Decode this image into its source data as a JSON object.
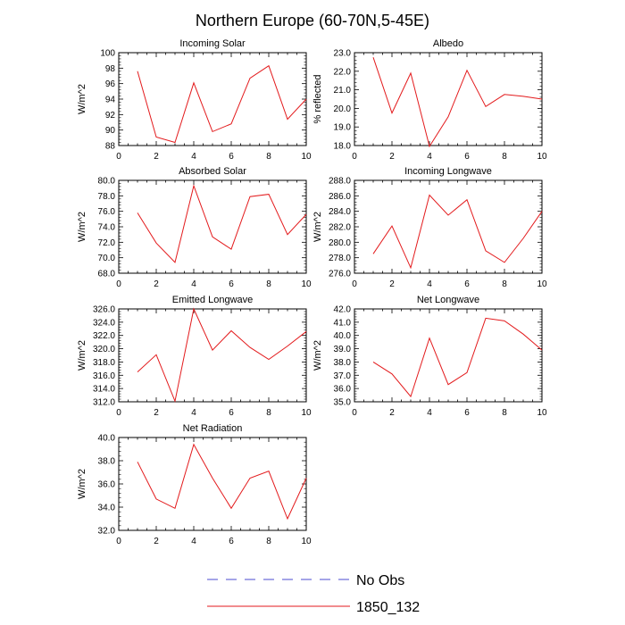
{
  "figure": {
    "title": "Northern Europe (60-70N,5-45E)",
    "legend": [
      {
        "label": "No Obs",
        "color": "#4b4bd2",
        "style": "dashed"
      },
      {
        "label": "1850_132",
        "color": "#e31a1c",
        "style": "solid"
      }
    ],
    "line_color": "#e31a1c"
  },
  "chart_data": [
    {
      "type": "line",
      "title": "Incoming Solar",
      "ylabel": "W/m^2",
      "xlim": [
        0,
        10
      ],
      "ylim": [
        88,
        100
      ],
      "xticks": [
        0,
        2,
        4,
        6,
        8,
        10
      ],
      "yticks": [
        "88",
        "90",
        "92",
        "94",
        "96",
        "98",
        "100"
      ],
      "grid": false,
      "series": [
        {
          "x": [
            1,
            2,
            3,
            4,
            5,
            6,
            7,
            8,
            9,
            10
          ],
          "y": [
            97.6,
            89.1,
            88.4,
            96.1,
            89.8,
            90.8,
            96.7,
            98.3,
            91.4,
            94.0
          ]
        }
      ]
    },
    {
      "type": "line",
      "title": "Albedo",
      "ylabel": "% reflected",
      "xlim": [
        0,
        10
      ],
      "ylim": [
        18,
        23
      ],
      "xticks": [
        0,
        2,
        4,
        6,
        8,
        10
      ],
      "yticks": [
        "18.0",
        "19.0",
        "20.0",
        "21.0",
        "22.0",
        "23.0"
      ],
      "grid": false,
      "series": [
        {
          "x": [
            1,
            2,
            3,
            4,
            5,
            6,
            7,
            8,
            9,
            10
          ],
          "y": [
            22.75,
            19.75,
            21.9,
            17.95,
            19.55,
            22.05,
            20.1,
            20.75,
            20.65,
            20.5
          ]
        }
      ]
    },
    {
      "type": "line",
      "title": "Absorbed Solar",
      "ylabel": "W/m^2",
      "xlim": [
        0,
        10
      ],
      "ylim": [
        68,
        80
      ],
      "xticks": [
        0,
        2,
        4,
        6,
        8,
        10
      ],
      "yticks": [
        "68.0",
        "70.0",
        "72.0",
        "74.0",
        "76.0",
        "78.0",
        "80.0"
      ],
      "grid": false,
      "series": [
        {
          "x": [
            1,
            2,
            3,
            4,
            5,
            6,
            7,
            8,
            9,
            10
          ],
          "y": [
            75.8,
            71.9,
            69.4,
            79.3,
            72.7,
            71.1,
            77.9,
            78.2,
            73.0,
            75.6
          ]
        }
      ]
    },
    {
      "type": "line",
      "title": "Incoming Longwave",
      "ylabel": "W/m^2",
      "xlim": [
        0,
        10
      ],
      "ylim": [
        276,
        288
      ],
      "xticks": [
        0,
        2,
        4,
        6,
        8,
        10
      ],
      "yticks": [
        "276.0",
        "278.0",
        "280.0",
        "282.0",
        "284.0",
        "286.0",
        "288.0"
      ],
      "grid": false,
      "series": [
        {
          "x": [
            1,
            2,
            3,
            4,
            5,
            6,
            7,
            8,
            9,
            10
          ],
          "y": [
            278.5,
            282.1,
            276.7,
            286.1,
            283.5,
            285.5,
            278.9,
            277.4,
            280.5,
            284.0
          ]
        }
      ]
    },
    {
      "type": "line",
      "title": "Emitted Longwave",
      "ylabel": "W/m^2",
      "xlim": [
        0,
        10
      ],
      "ylim": [
        312,
        326
      ],
      "xticks": [
        0,
        2,
        4,
        6,
        8,
        10
      ],
      "yticks": [
        "312.0",
        "314.0",
        "316.0",
        "318.0",
        "320.0",
        "322.0",
        "324.0",
        "326.0"
      ],
      "grid": false,
      "series": [
        {
          "x": [
            1,
            2,
            3,
            4,
            5,
            6,
            7,
            8,
            9,
            10
          ],
          "y": [
            316.5,
            319.1,
            312.1,
            326.0,
            319.8,
            322.7,
            320.2,
            318.4,
            320.4,
            322.6
          ]
        }
      ]
    },
    {
      "type": "line",
      "title": "Net Longwave",
      "ylabel": "W/m^2",
      "xlim": [
        0,
        10
      ],
      "ylim": [
        35,
        42
      ],
      "xticks": [
        0,
        2,
        4,
        6,
        8,
        10
      ],
      "yticks": [
        "35.0",
        "36.0",
        "37.0",
        "38.0",
        "39.0",
        "40.0",
        "41.0",
        "42.0"
      ],
      "grid": false,
      "series": [
        {
          "x": [
            1,
            2,
            3,
            4,
            5,
            6,
            7,
            8,
            9,
            10
          ],
          "y": [
            38.0,
            37.1,
            35.4,
            39.8,
            36.3,
            37.2,
            41.3,
            41.1,
            40.1,
            38.9
          ]
        }
      ]
    },
    {
      "type": "line",
      "title": "Net Radiation",
      "ylabel": "W/m^2",
      "xlim": [
        0,
        10
      ],
      "ylim": [
        32,
        40
      ],
      "xticks": [
        0,
        2,
        4,
        6,
        8,
        10
      ],
      "yticks": [
        "32.0",
        "34.0",
        "36.0",
        "38.0",
        "40.0"
      ],
      "grid": false,
      "series": [
        {
          "x": [
            1,
            2,
            3,
            4,
            5,
            6,
            7,
            8,
            9,
            10
          ],
          "y": [
            37.9,
            34.7,
            33.9,
            39.4,
            36.5,
            33.9,
            36.5,
            37.1,
            33.0,
            36.5
          ]
        }
      ]
    }
  ]
}
